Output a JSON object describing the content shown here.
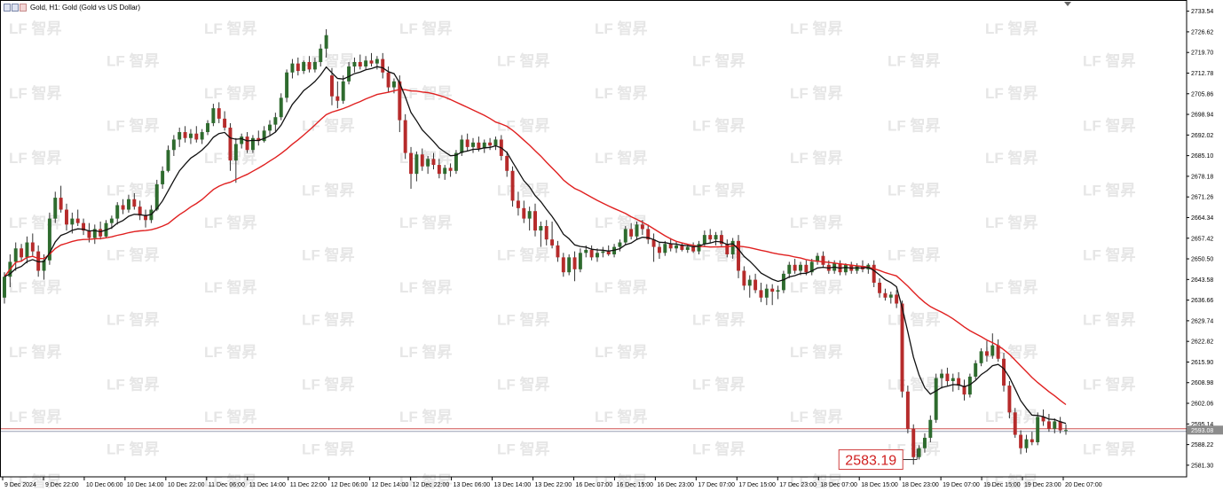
{
  "chart_title": "Gold, H1:  Gold (Gold vs US Dollar)",
  "watermark_text": "智昇",
  "colors": {
    "bull": "#2e6b2e",
    "bear": "#b62b2b",
    "ma_slow": "#e02020",
    "ma_fast": "#111111",
    "hline": "#d05050",
    "price_label_bg": "#8c8c8c",
    "axis": "#000000"
  },
  "chart_data": {
    "type": "candlestick",
    "title": "Gold, H1:  Gold (Gold vs US Dollar)",
    "symbol": "Gold",
    "timeframe": "H1",
    "ylim": [
      2577.4,
      2736.7
    ],
    "y_ticks": [
      "2733.54",
      "2726.62",
      "2719.70",
      "2712.78",
      "2705.86",
      "2698.94",
      "2692.02",
      "2685.10",
      "2678.18",
      "2671.26",
      "2664.34",
      "2657.42",
      "2650.50",
      "2643.58",
      "2636.66",
      "2629.74",
      "2622.82",
      "2615.90",
      "2608.98",
      "2602.06",
      "2595.14",
      "2588.22",
      "2581.30"
    ],
    "x_ticks": [
      "9 Dec 2024",
      "9 Dec 22:00",
      "10 Dec 06:00",
      "10 Dec 14:00",
      "10 Dec 22:00",
      "11 Dec 06:00",
      "11 Dec 14:00",
      "11 Dec 22:00",
      "12 Dec 06:00",
      "12 Dec 14:00",
      "12 Dec 22:00",
      "13 Dec 06:00",
      "13 Dec 14:00",
      "13 Dec 22:00",
      "16 Dec 07:00",
      "16 Dec 15:00",
      "16 Dec 23:00",
      "17 Dec 07:00",
      "17 Dec 15:00",
      "17 Dec 23:00",
      "18 Dec 07:00",
      "18 Dec 15:00",
      "18 Dec 23:00",
      "19 Dec 07:00",
      "19 Dec 15:00",
      "19 Dec 23:00",
      "20 Dec 07:00"
    ],
    "current_price": "2593.08",
    "current_price_value": 2593.08,
    "annotation": {
      "text": "2583.19",
      "value": 2583.19
    },
    "candles": [
      [
        2637.5,
        2646.0,
        2635.5,
        2644.5
      ],
      [
        2644.5,
        2652.0,
        2641.0,
        2649.5
      ],
      [
        2649.5,
        2656.0,
        2646.5,
        2654.0
      ],
      [
        2654.0,
        2655.5,
        2649.5,
        2651.0
      ],
      [
        2651.0,
        2658.0,
        2649.0,
        2656.0
      ],
      [
        2656.0,
        2659.0,
        2651.5,
        2653.0
      ],
      [
        2653.0,
        2655.0,
        2644.5,
        2646.5
      ],
      [
        2646.5,
        2652.0,
        2643.5,
        2650.0
      ],
      [
        2650.0,
        2666.0,
        2648.5,
        2664.0
      ],
      [
        2664.0,
        2673.0,
        2662.5,
        2671.0
      ],
      [
        2671.0,
        2675.0,
        2666.0,
        2667.0
      ],
      [
        2667.0,
        2669.0,
        2660.0,
        2662.0
      ],
      [
        2662.0,
        2666.0,
        2659.0,
        2664.0
      ],
      [
        2664.0,
        2667.0,
        2661.5,
        2662.5
      ],
      [
        2662.5,
        2664.0,
        2658.5,
        2660.0
      ],
      [
        2660.0,
        2662.5,
        2656.0,
        2657.5
      ],
      [
        2657.5,
        2662.0,
        2655.5,
        2660.5
      ],
      [
        2660.5,
        2663.0,
        2657.0,
        2658.0
      ],
      [
        2658.0,
        2663.5,
        2657.5,
        2662.5
      ],
      [
        2662.5,
        2665.0,
        2660.5,
        2664.0
      ],
      [
        2664.0,
        2669.5,
        2662.0,
        2668.5
      ],
      [
        2668.5,
        2670.5,
        2665.5,
        2667.0
      ],
      [
        2667.0,
        2672.0,
        2666.0,
        2670.5
      ],
      [
        2670.5,
        2672.5,
        2667.0,
        2668.0
      ],
      [
        2668.0,
        2670.0,
        2663.5,
        2665.0
      ],
      [
        2665.0,
        2667.0,
        2661.0,
        2663.5
      ],
      [
        2663.5,
        2668.5,
        2662.5,
        2667.0
      ],
      [
        2667.0,
        2677.0,
        2666.5,
        2675.5
      ],
      [
        2675.5,
        2681.5,
        2674.0,
        2680.0
      ],
      [
        2680.0,
        2688.5,
        2679.5,
        2687.0
      ],
      [
        2687.0,
        2692.0,
        2685.0,
        2690.5
      ],
      [
        2690.5,
        2694.5,
        2688.0,
        2693.0
      ],
      [
        2693.0,
        2695.0,
        2689.5,
        2691.0
      ],
      [
        2691.0,
        2694.0,
        2689.0,
        2692.5
      ],
      [
        2692.5,
        2695.0,
        2689.5,
        2690.5
      ],
      [
        2690.5,
        2694.0,
        2689.0,
        2693.0
      ],
      [
        2693.0,
        2697.0,
        2692.0,
        2696.0
      ],
      [
        2696.0,
        2702.5,
        2695.0,
        2701.0
      ],
      [
        2701.0,
        2703.0,
        2696.0,
        2697.5
      ],
      [
        2697.5,
        2700.0,
        2693.5,
        2694.5
      ],
      [
        2694.5,
        2696.0,
        2680.0,
        2683.5
      ],
      [
        2683.5,
        2691.0,
        2676.0,
        2689.0
      ],
      [
        2689.0,
        2692.5,
        2687.5,
        2691.5
      ],
      [
        2691.5,
        2693.0,
        2686.0,
        2687.0
      ],
      [
        2687.0,
        2692.0,
        2686.0,
        2691.0
      ],
      [
        2691.0,
        2693.5,
        2688.5,
        2690.0
      ],
      [
        2690.0,
        2695.0,
        2689.5,
        2693.5
      ],
      [
        2693.5,
        2697.0,
        2692.0,
        2695.5
      ],
      [
        2695.5,
        2699.5,
        2693.0,
        2698.0
      ],
      [
        2698.0,
        2706.0,
        2697.0,
        2704.5
      ],
      [
        2704.5,
        2714.0,
        2703.0,
        2713.0
      ],
      [
        2713.0,
        2717.5,
        2711.0,
        2716.0
      ],
      [
        2716.0,
        2718.0,
        2712.0,
        2713.5
      ],
      [
        2713.5,
        2717.0,
        2712.5,
        2716.5
      ],
      [
        2716.5,
        2718.5,
        2713.0,
        2714.0
      ],
      [
        2714.0,
        2718.0,
        2713.0,
        2716.5
      ],
      [
        2716.5,
        2722.5,
        2715.0,
        2721.0
      ],
      [
        2721.0,
        2727.5,
        2718.0,
        2725.5
      ],
      [
        2712.0,
        2714.5,
        2702.0,
        2705.0
      ],
      [
        2705.0,
        2710.0,
        2701.0,
        2703.5
      ],
      [
        2703.5,
        2712.0,
        2702.5,
        2710.0
      ],
      [
        2710.0,
        2716.5,
        2709.0,
        2715.0
      ],
      [
        2715.0,
        2718.0,
        2713.0,
        2716.5
      ],
      [
        2716.5,
        2719.0,
        2714.0,
        2715.0
      ],
      [
        2715.0,
        2718.5,
        2714.0,
        2717.0
      ],
      [
        2717.0,
        2719.5,
        2715.0,
        2716.0
      ],
      [
        2716.0,
        2718.5,
        2714.0,
        2717.5
      ],
      [
        2717.5,
        2719.5,
        2711.0,
        2713.0
      ],
      [
        2713.0,
        2715.0,
        2706.5,
        2708.0
      ],
      [
        2708.0,
        2711.0,
        2706.0,
        2710.0
      ],
      [
        2710.0,
        2712.0,
        2693.0,
        2697.0
      ],
      [
        2697.0,
        2699.0,
        2684.0,
        2686.0
      ],
      [
        2686.0,
        2688.0,
        2674.0,
        2679.0
      ],
      [
        2679.0,
        2686.5,
        2676.5,
        2685.5
      ],
      [
        2685.5,
        2687.5,
        2680.0,
        2681.5
      ],
      [
        2681.5,
        2685.0,
        2679.0,
        2684.0
      ],
      [
        2684.0,
        2686.0,
        2680.5,
        2682.0
      ],
      [
        2682.0,
        2684.0,
        2677.5,
        2679.0
      ],
      [
        2679.0,
        2682.0,
        2677.0,
        2681.0
      ],
      [
        2681.0,
        2682.5,
        2678.0,
        2680.0
      ],
      [
        2680.0,
        2687.0,
        2679.0,
        2686.0
      ],
      [
        2686.0,
        2692.0,
        2685.0,
        2690.5
      ],
      [
        2690.5,
        2692.5,
        2686.5,
        2688.0
      ],
      [
        2688.0,
        2691.0,
        2686.0,
        2689.5
      ],
      [
        2689.5,
        2691.5,
        2686.5,
        2687.5
      ],
      [
        2687.5,
        2690.5,
        2686.0,
        2689.5
      ],
      [
        2689.5,
        2691.0,
        2687.0,
        2688.5
      ],
      [
        2688.5,
        2691.5,
        2687.0,
        2690.5
      ],
      [
        2690.5,
        2692.0,
        2683.5,
        2685.0
      ],
      [
        2685.0,
        2686.5,
        2678.0,
        2680.0
      ],
      [
        2680.0,
        2681.5,
        2668.0,
        2670.0
      ],
      [
        2670.0,
        2673.0,
        2665.0,
        2667.5
      ],
      [
        2667.5,
        2670.0,
        2662.5,
        2664.0
      ],
      [
        2664.0,
        2668.0,
        2660.0,
        2666.5
      ],
      [
        2666.5,
        2669.0,
        2658.0,
        2660.0
      ],
      [
        2660.0,
        2663.0,
        2654.5,
        2661.5
      ],
      [
        2661.5,
        2663.5,
        2655.0,
        2657.0
      ],
      [
        2657.0,
        2663.0,
        2654.0,
        2655.0
      ],
      [
        2655.0,
        2656.5,
        2649.5,
        2651.0
      ],
      [
        2651.0,
        2652.5,
        2644.5,
        2646.0
      ],
      [
        2646.0,
        2652.0,
        2645.0,
        2651.0
      ],
      [
        2651.0,
        2653.0,
        2643.0,
        2647.0
      ],
      [
        2647.0,
        2654.0,
        2646.0,
        2652.5
      ],
      [
        2652.5,
        2655.0,
        2651.0,
        2653.5
      ],
      [
        2653.5,
        2655.0,
        2650.0,
        2651.0
      ],
      [
        2651.0,
        2654.0,
        2649.5,
        2652.5
      ],
      [
        2652.5,
        2654.5,
        2651.0,
        2653.0
      ],
      [
        2653.0,
        2655.0,
        2651.5,
        2652.0
      ],
      [
        2652.0,
        2655.5,
        2651.0,
        2654.5
      ],
      [
        2654.5,
        2657.0,
        2653.0,
        2656.0
      ],
      [
        2656.0,
        2661.5,
        2655.0,
        2660.5
      ],
      [
        2660.5,
        2662.5,
        2657.0,
        2658.0
      ],
      [
        2658.0,
        2663.0,
        2657.0,
        2662.0
      ],
      [
        2662.0,
        2663.5,
        2658.5,
        2660.5
      ],
      [
        2660.5,
        2662.0,
        2655.5,
        2657.0
      ],
      [
        2657.0,
        2659.0,
        2649.5,
        2654.5
      ],
      [
        2654.5,
        2656.0,
        2650.5,
        2652.5
      ],
      [
        2652.5,
        2656.5,
        2651.5,
        2655.5
      ],
      [
        2655.5,
        2657.5,
        2653.0,
        2654.0
      ],
      [
        2654.0,
        2656.5,
        2652.5,
        2655.0
      ],
      [
        2655.0,
        2656.0,
        2653.0,
        2653.5
      ],
      [
        2653.5,
        2655.5,
        2652.5,
        2654.5
      ],
      [
        2654.5,
        2656.0,
        2652.5,
        2653.0
      ],
      [
        2653.0,
        2656.5,
        2652.0,
        2655.5
      ],
      [
        2655.5,
        2660.0,
        2654.5,
        2658.5
      ],
      [
        2658.5,
        2660.5,
        2656.0,
        2657.0
      ],
      [
        2657.0,
        2659.5,
        2655.0,
        2658.5
      ],
      [
        2658.5,
        2660.0,
        2654.5,
        2655.5
      ],
      [
        2655.5,
        2657.0,
        2651.0,
        2652.0
      ],
      [
        2652.0,
        2657.5,
        2650.5,
        2656.5
      ],
      [
        2656.5,
        2658.5,
        2644.0,
        2646.5
      ],
      [
        2646.5,
        2648.0,
        2640.0,
        2641.5
      ],
      [
        2641.5,
        2645.0,
        2637.5,
        2643.5
      ],
      [
        2643.5,
        2645.5,
        2639.0,
        2640.0
      ],
      [
        2640.0,
        2642.5,
        2636.0,
        2637.5
      ],
      [
        2637.5,
        2642.0,
        2635.0,
        2640.5
      ],
      [
        2640.5,
        2642.0,
        2635.0,
        2639.5
      ],
      [
        2639.5,
        2641.5,
        2637.0,
        2640.0
      ],
      [
        2640.0,
        2646.5,
        2639.0,
        2645.5
      ],
      [
        2645.5,
        2649.5,
        2644.0,
        2648.5
      ],
      [
        2648.5,
        2650.5,
        2645.5,
        2646.5
      ],
      [
        2646.5,
        2649.5,
        2645.0,
        2648.5
      ],
      [
        2648.5,
        2650.0,
        2645.0,
        2646.0
      ],
      [
        2646.0,
        2650.5,
        2645.0,
        2649.5
      ],
      [
        2649.5,
        2652.5,
        2648.5,
        2651.5
      ],
      [
        2651.5,
        2653.0,
        2647.5,
        2648.5
      ],
      [
        2648.5,
        2650.0,
        2645.5,
        2646.5
      ],
      [
        2646.5,
        2650.0,
        2645.5,
        2649.0
      ],
      [
        2649.0,
        2650.0,
        2645.0,
        2646.0
      ],
      [
        2646.0,
        2649.0,
        2645.0,
        2648.5
      ],
      [
        2648.5,
        2649.5,
        2645.5,
        2646.5
      ],
      [
        2646.5,
        2649.0,
        2645.5,
        2648.0
      ],
      [
        2648.0,
        2650.0,
        2646.0,
        2647.0
      ],
      [
        2647.0,
        2649.0,
        2645.5,
        2648.5
      ],
      [
        2648.5,
        2650.0,
        2641.0,
        2642.5
      ],
      [
        2642.5,
        2644.0,
        2637.5,
        2639.0
      ],
      [
        2639.0,
        2640.5,
        2636.5,
        2637.5
      ],
      [
        2637.5,
        2639.5,
        2635.5,
        2638.5
      ],
      [
        2638.5,
        2640.0,
        2634.0,
        2635.5
      ],
      [
        2635.5,
        2636.5,
        2604.0,
        2606.0
      ],
      [
        2606.0,
        2608.0,
        2592.0,
        2593.5
      ],
      [
        2593.5,
        2595.0,
        2581.5,
        2584.0
      ],
      [
        2584.0,
        2588.0,
        2583.2,
        2587.0
      ],
      [
        2587.0,
        2592.0,
        2585.5,
        2590.5
      ],
      [
        2590.5,
        2598.0,
        2589.0,
        2596.5
      ],
      [
        2596.5,
        2612.0,
        2595.5,
        2610.5
      ],
      [
        2610.5,
        2613.5,
        2607.0,
        2612.0
      ],
      [
        2612.0,
        2614.0,
        2608.0,
        2609.5
      ],
      [
        2609.5,
        2612.0,
        2606.0,
        2610.5
      ],
      [
        2610.5,
        2612.5,
        2606.5,
        2608.0
      ],
      [
        2608.0,
        2610.0,
        2603.0,
        2605.0
      ],
      [
        2605.0,
        2612.0,
        2604.0,
        2611.0
      ],
      [
        2611.0,
        2616.5,
        2610.0,
        2615.5
      ],
      [
        2615.5,
        2620.5,
        2614.5,
        2619.5
      ],
      [
        2619.5,
        2623.0,
        2616.0,
        2618.0
      ],
      [
        2618.0,
        2625.5,
        2617.0,
        2621.5
      ],
      [
        2621.5,
        2623.5,
        2616.0,
        2617.0
      ],
      [
        2617.0,
        2619.0,
        2606.0,
        2608.0
      ],
      [
        2608.0,
        2609.5,
        2597.0,
        2599.0
      ],
      [
        2599.0,
        2600.5,
        2590.5,
        2591.5
      ],
      [
        2591.5,
        2593.0,
        2585.0,
        2587.0
      ],
      [
        2587.0,
        2591.5,
        2585.5,
        2590.0
      ],
      [
        2590.0,
        2592.5,
        2588.0,
        2589.0
      ],
      [
        2589.0,
        2599.0,
        2588.0,
        2597.5
      ],
      [
        2597.5,
        2600.0,
        2594.5,
        2596.0
      ],
      [
        2596.0,
        2598.5,
        2592.5,
        2593.5
      ],
      [
        2593.5,
        2597.0,
        2592.0,
        2596.0
      ],
      [
        2596.0,
        2597.5,
        2592.0,
        2593.0
      ],
      [
        2593.0,
        2595.0,
        2591.5,
        2593.08
      ]
    ]
  }
}
